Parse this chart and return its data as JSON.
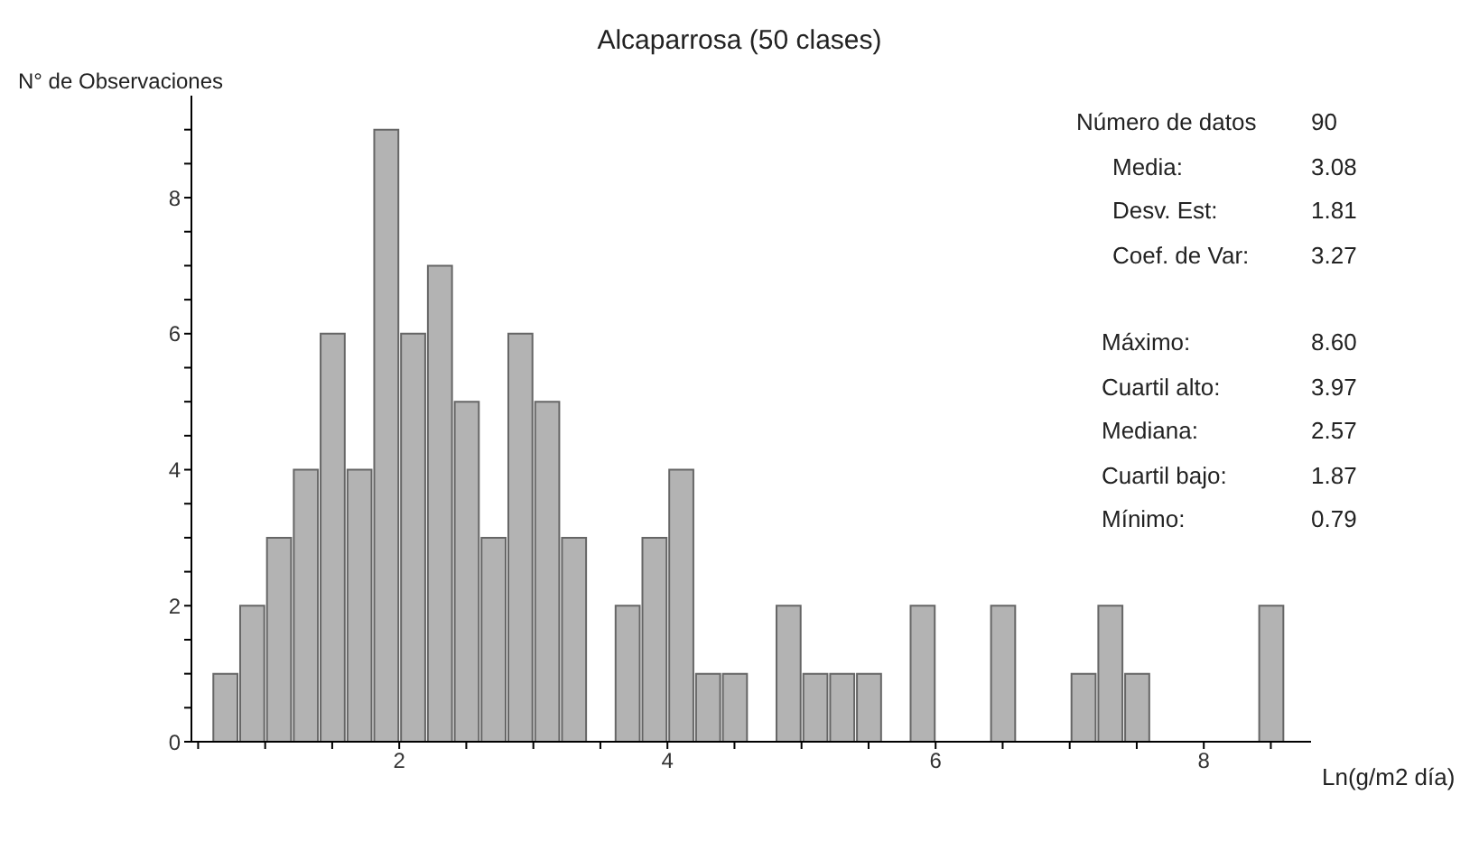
{
  "chart_data": {
    "type": "histogram",
    "title": "Alcaparrosa (50 clases)",
    "ylabel": "N° de Observaciones",
    "xlabel": "Ln(g/m2 día)",
    "bins": [
      0.6,
      0.8,
      1.0,
      1.2,
      1.4,
      1.6,
      1.8,
      2.0,
      2.2,
      2.4,
      2.6,
      2.8,
      3.0,
      3.2,
      3.4,
      3.6,
      3.8,
      4.0,
      4.2,
      4.4,
      4.6,
      4.8,
      5.0,
      5.2,
      5.4,
      5.6,
      5.8,
      6.0,
      6.2,
      6.4,
      6.6,
      6.8,
      7.0,
      7.2,
      7.4,
      7.6,
      7.8,
      8.0,
      8.2,
      8.4,
      8.6
    ],
    "values": [
      1,
      2,
      3,
      4,
      6,
      4,
      9,
      6,
      7,
      5,
      3,
      6,
      5,
      3,
      0,
      2,
      3,
      4,
      1,
      1,
      0,
      2,
      1,
      1,
      1,
      0,
      2,
      0,
      0,
      2,
      0,
      0,
      1,
      2,
      1,
      0,
      0,
      0,
      0,
      2
    ],
    "color": "#b3b3b3",
    "xlim": [
      0.45,
      8.8
    ],
    "xticks": [
      {
        "value": 0.5,
        "label": null
      },
      {
        "value": 1,
        "label": null
      },
      {
        "value": 1.5,
        "label": null
      },
      2,
      {
        "value": 2.5,
        "label": null
      },
      {
        "value": 3,
        "label": null
      },
      {
        "value": 3.5,
        "label": null
      },
      4,
      {
        "value": 4.5,
        "label": null
      },
      {
        "value": 5,
        "label": null
      },
      {
        "value": 5.5,
        "label": null
      },
      6,
      {
        "value": 6.5,
        "label": null
      },
      {
        "value": 7,
        "label": null
      },
      {
        "value": 7.5,
        "label": null
      },
      8,
      {
        "value": 8.5,
        "label": null
      }
    ],
    "ylim": [
      0,
      9.5
    ],
    "yticks": [
      0,
      {
        "value": 0.5,
        "label": null
      },
      {
        "value": 1,
        "label": null
      },
      {
        "value": 1.5,
        "label": null
      },
      2,
      {
        "value": 2.5,
        "label": null
      },
      {
        "value": 3,
        "label": null
      },
      {
        "value": 3.5,
        "label": null
      },
      4,
      {
        "value": 4.5,
        "label": null
      },
      {
        "value": 5,
        "label": null
      },
      {
        "value": 5.5,
        "label": null
      },
      6,
      {
        "value": 6.5,
        "label": null
      },
      {
        "value": 7,
        "label": null
      },
      {
        "value": 7.5,
        "label": null
      },
      8,
      {
        "value": 8.5,
        "label": null
      },
      {
        "value": 9,
        "label": null
      }
    ],
    "grid": false,
    "legend": false,
    "annotations": [
      "Número de datos",
      "90",
      "Media:",
      "3.08",
      "Desv. Est:",
      "1.81",
      "Coef. de Var:",
      "3.27",
      "Máximo:",
      "8.60",
      "Cuartil alto:",
      "3.97",
      "Mediana:",
      "2.57",
      "Cuartil bajo:",
      "1.87",
      "Mínimo:",
      "0.79"
    ]
  }
}
